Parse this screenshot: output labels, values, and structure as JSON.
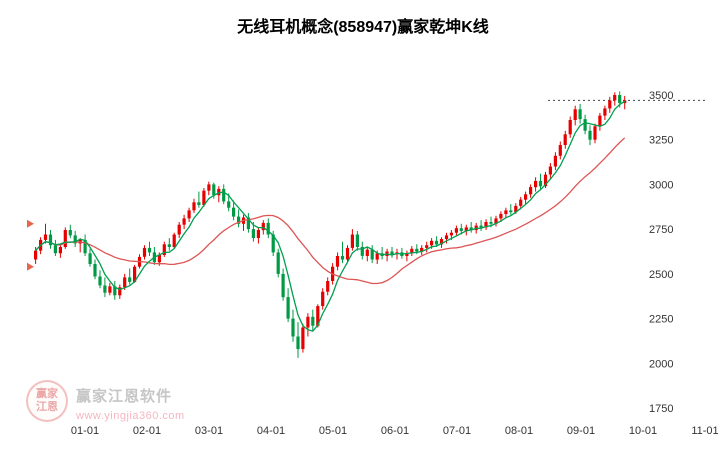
{
  "title": "无线耳机概念(858947)赢家乾坤K线",
  "watermark": {
    "logo_line1": "赢家",
    "logo_line2": "江恩",
    "name": "赢家江恩软件",
    "url": "www.yingjia360.com"
  },
  "colors": {
    "up": "#e60000",
    "down": "#009a44",
    "ma_fast": "#00a050",
    "ma_slow": "#dd5555",
    "text": "#333333",
    "dotted": "#444444",
    "marker": "#e8654a"
  },
  "chart_data": {
    "type": "candlestick",
    "title": "无线耳机概念(858947)赢家乾坤K线",
    "y_ticks": [
      3500,
      3250,
      3000,
      2750,
      2500,
      2250,
      2000,
      1750
    ],
    "x_ticks": [
      "01-01",
      "02-01",
      "03-01",
      "04-01",
      "05-01",
      "06-01",
      "07-01",
      "08-01",
      "09-01",
      "10-01",
      "11-01"
    ],
    "ylim": [
      1750,
      3560
    ],
    "ma_fast_period": 5,
    "ma_slow_period": 21,
    "last_price": 3470,
    "left_markers": [
      2780,
      2540
    ],
    "candles": [
      [
        2580,
        2650,
        2555,
        2630
      ],
      [
        2630,
        2705,
        2610,
        2690
      ],
      [
        2690,
        2780,
        2670,
        2720
      ],
      [
        2720,
        2745,
        2640,
        2660
      ],
      [
        2660,
        2690,
        2600,
        2615
      ],
      [
        2615,
        2665,
        2590,
        2650
      ],
      [
        2650,
        2760,
        2640,
        2745
      ],
      [
        2745,
        2775,
        2700,
        2715
      ],
      [
        2715,
        2740,
        2650,
        2670
      ],
      [
        2670,
        2700,
        2620,
        2690
      ],
      [
        2690,
        2720,
        2600,
        2615
      ],
      [
        2615,
        2640,
        2540,
        2555
      ],
      [
        2555,
        2580,
        2470,
        2485
      ],
      [
        2485,
        2520,
        2420,
        2435
      ],
      [
        2435,
        2480,
        2370,
        2395
      ],
      [
        2395,
        2450,
        2380,
        2430
      ],
      [
        2430,
        2460,
        2355,
        2380
      ],
      [
        2380,
        2440,
        2360,
        2425
      ],
      [
        2425,
        2500,
        2410,
        2480
      ],
      [
        2480,
        2530,
        2440,
        2455
      ],
      [
        2455,
        2550,
        2450,
        2540
      ],
      [
        2540,
        2610,
        2530,
        2595
      ],
      [
        2595,
        2660,
        2580,
        2645
      ],
      [
        2645,
        2680,
        2600,
        2620
      ],
      [
        2620,
        2650,
        2550,
        2565
      ],
      [
        2565,
        2620,
        2545,
        2605
      ],
      [
        2605,
        2680,
        2595,
        2665
      ],
      [
        2665,
        2700,
        2630,
        2650
      ],
      [
        2650,
        2730,
        2640,
        2720
      ],
      [
        2720,
        2790,
        2700,
        2775
      ],
      [
        2775,
        2830,
        2750,
        2810
      ],
      [
        2810,
        2870,
        2790,
        2855
      ],
      [
        2855,
        2920,
        2840,
        2900
      ],
      [
        2900,
        2960,
        2870,
        2885
      ],
      [
        2885,
        2980,
        2875,
        2965
      ],
      [
        2965,
        3015,
        2940,
        3000
      ],
      [
        3000,
        3010,
        2920,
        2940
      ],
      [
        2940,
        2990,
        2900,
        2975
      ],
      [
        2975,
        3000,
        2890,
        2905
      ],
      [
        2905,
        2950,
        2850,
        2870
      ],
      [
        2870,
        2910,
        2800,
        2820
      ],
      [
        2820,
        2860,
        2760,
        2780
      ],
      [
        2780,
        2830,
        2740,
        2815
      ],
      [
        2815,
        2840,
        2730,
        2750
      ],
      [
        2750,
        2790,
        2680,
        2700
      ],
      [
        2700,
        2760,
        2670,
        2745
      ],
      [
        2745,
        2800,
        2720,
        2785
      ],
      [
        2785,
        2810,
        2700,
        2720
      ],
      [
        2720,
        2740,
        2600,
        2620
      ],
      [
        2620,
        2640,
        2480,
        2500
      ],
      [
        2500,
        2530,
        2350,
        2370
      ],
      [
        2370,
        2420,
        2230,
        2250
      ],
      [
        2250,
        2300,
        2120,
        2150
      ],
      [
        2150,
        2230,
        2030,
        2080
      ],
      [
        2080,
        2220,
        2060,
        2200
      ],
      [
        2200,
        2280,
        2150,
        2260
      ],
      [
        2260,
        2300,
        2180,
        2210
      ],
      [
        2210,
        2330,
        2200,
        2320
      ],
      [
        2320,
        2420,
        2300,
        2400
      ],
      [
        2400,
        2480,
        2380,
        2460
      ],
      [
        2460,
        2560,
        2440,
        2540
      ],
      [
        2540,
        2620,
        2520,
        2600
      ],
      [
        2600,
        2680,
        2560,
        2580
      ],
      [
        2580,
        2660,
        2560,
        2645
      ],
      [
        2645,
        2750,
        2630,
        2720
      ],
      [
        2720,
        2740,
        2630,
        2650
      ],
      [
        2650,
        2680,
        2580,
        2600
      ],
      [
        2600,
        2650,
        2570,
        2635
      ],
      [
        2635,
        2660,
        2560,
        2580
      ],
      [
        2580,
        2630,
        2555,
        2615
      ],
      [
        2615,
        2650,
        2580,
        2600
      ],
      [
        2600,
        2640,
        2570,
        2625
      ],
      [
        2625,
        2650,
        2590,
        2610
      ],
      [
        2610,
        2640,
        2580,
        2620
      ],
      [
        2620,
        2645,
        2585,
        2600
      ],
      [
        2600,
        2630,
        2570,
        2615
      ],
      [
        2615,
        2655,
        2600,
        2640
      ],
      [
        2640,
        2665,
        2610,
        2625
      ],
      [
        2625,
        2660,
        2605,
        2645
      ],
      [
        2645,
        2680,
        2620,
        2660
      ],
      [
        2660,
        2700,
        2640,
        2685
      ],
      [
        2685,
        2710,
        2650,
        2665
      ],
      [
        2665,
        2705,
        2645,
        2695
      ],
      [
        2695,
        2730,
        2670,
        2715
      ],
      [
        2715,
        2745,
        2690,
        2730
      ],
      [
        2730,
        2770,
        2710,
        2755
      ],
      [
        2755,
        2780,
        2720,
        2740
      ],
      [
        2740,
        2775,
        2715,
        2760
      ],
      [
        2760,
        2790,
        2730,
        2745
      ],
      [
        2745,
        2785,
        2725,
        2770
      ],
      [
        2770,
        2800,
        2740,
        2760
      ],
      [
        2760,
        2805,
        2745,
        2790
      ],
      [
        2790,
        2820,
        2760,
        2780
      ],
      [
        2780,
        2825,
        2765,
        2810
      ],
      [
        2810,
        2850,
        2790,
        2835
      ],
      [
        2835,
        2870,
        2810,
        2855
      ],
      [
        2855,
        2890,
        2830,
        2845
      ],
      [
        2845,
        2895,
        2835,
        2880
      ],
      [
        2880,
        2930,
        2860,
        2915
      ],
      [
        2915,
        2960,
        2890,
        2945
      ],
      [
        2945,
        3000,
        2925,
        2985
      ],
      [
        2985,
        3040,
        2960,
        3020
      ],
      [
        3020,
        3060,
        2970,
        2990
      ],
      [
        2990,
        3070,
        2980,
        3055
      ],
      [
        3055,
        3120,
        3030,
        3100
      ],
      [
        3100,
        3180,
        3080,
        3160
      ],
      [
        3160,
        3240,
        3140,
        3220
      ],
      [
        3220,
        3300,
        3200,
        3280
      ],
      [
        3280,
        3380,
        3260,
        3360
      ],
      [
        3360,
        3440,
        3330,
        3420
      ],
      [
        3420,
        3450,
        3340,
        3365
      ],
      [
        3365,
        3390,
        3280,
        3300
      ],
      [
        3300,
        3330,
        3220,
        3250
      ],
      [
        3250,
        3340,
        3230,
        3325
      ],
      [
        3325,
        3400,
        3300,
        3385
      ],
      [
        3385,
        3440,
        3360,
        3425
      ],
      [
        3425,
        3490,
        3400,
        3470
      ],
      [
        3470,
        3515,
        3440,
        3500
      ],
      [
        3500,
        3520,
        3430,
        3455
      ],
      [
        3455,
        3495,
        3420,
        3470
      ]
    ]
  }
}
